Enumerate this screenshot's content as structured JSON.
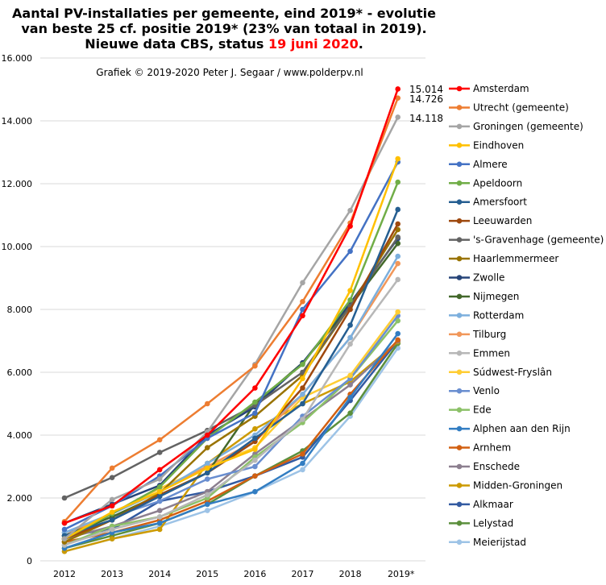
{
  "chart_data": {
    "type": "line",
    "title_lines": [
      "Aantal PV-installaties  per gemeente, eind 2019* - evolutie",
      "van beste 25 cf. positie 2019* (23% van totaal in 2019)."
    ],
    "title_line3_prefix": "Nieuwe data CBS, status ",
    "title_line3_highlight": "19 juni 2020",
    "title_line3_suffix": ".",
    "highlight_color": "#ff0000",
    "subtitle": "Grafiek  © 2019-2020 Peter J. Segaar / www.polderpv.nl",
    "categories": [
      "2012",
      "2013",
      "2014",
      "2015",
      "2016",
      "2017",
      "2018",
      "2019*"
    ],
    "ylim": [
      0,
      16000
    ],
    "y_ticks": [
      "0",
      "2.000",
      "4.000",
      "6.000",
      "8.000",
      "10.000",
      "12.000",
      "14.000",
      "16.000"
    ],
    "grid": true,
    "legend_position": "right",
    "end_labels": [
      "15.014",
      "14.726",
      "14.118"
    ],
    "series": [
      {
        "name": "Amsterdam",
        "color": "#ff0000",
        "values": [
          1200,
          1750,
          2900,
          4000,
          5500,
          7800,
          10650,
          15014
        ]
      },
      {
        "name": "Utrecht (gemeente)",
        "color": "#ed7d31",
        "values": [
          1250,
          2950,
          3850,
          5000,
          6200,
          8250,
          10750,
          14726
        ]
      },
      {
        "name": "Groningen (gemeente)",
        "color": "#a5a5a5",
        "values": [
          700,
          1950,
          2600,
          4100,
          6250,
          8850,
          11150,
          14118
        ]
      },
      {
        "name": "Eindhoven",
        "color": "#ffc000",
        "values": [
          700,
          1550,
          2200,
          2950,
          3550,
          5800,
          8600,
          12795
        ]
      },
      {
        "name": "Almere",
        "color": "#4472c4",
        "values": [
          1000,
          1750,
          2700,
          3900,
          4700,
          8000,
          9850,
          12690
        ]
      },
      {
        "name": "Apeldoorn",
        "color": "#70ad47",
        "values": [
          700,
          1500,
          2350,
          3900,
          5050,
          6250,
          8300,
          12050
        ]
      },
      {
        "name": "Amersfoort",
        "color": "#255e91",
        "values": [
          800,
          1300,
          2050,
          2800,
          3900,
          5000,
          7500,
          11180
        ]
      },
      {
        "name": "Leeuwarden",
        "color": "#9e480e",
        "values": [
          700,
          1300,
          2100,
          2800,
          3800,
          5500,
          8000,
          10720
        ]
      },
      {
        "name": "'s-Gravenhage (gemeente)",
        "color": "#636363",
        "values": [
          2000,
          2650,
          3450,
          4150,
          4950,
          6000,
          8100,
          10300
        ]
      },
      {
        "name": "Haarlemmermeer",
        "color": "#997300",
        "values": [
          600,
          1300,
          2150,
          3600,
          4600,
          5900,
          8100,
          10540
        ]
      },
      {
        "name": "Zwolle",
        "color": "#264478",
        "values": [
          1200,
          1800,
          2400,
          4000,
          4900,
          6300,
          8200,
          10260
        ]
      },
      {
        "name": "Nijmegen",
        "color": "#43682b",
        "values": [
          800,
          1400,
          2100,
          2800,
          5000,
          6300,
          8100,
          10100
        ]
      },
      {
        "name": "Rotterdam",
        "color": "#7cafdd",
        "values": [
          900,
          1500,
          2200,
          3100,
          4000,
          5300,
          7100,
          9690
        ]
      },
      {
        "name": "Tilburg",
        "color": "#f1975a",
        "values": [
          800,
          1500,
          2200,
          3000,
          3800,
          5300,
          7100,
          9460
        ]
      },
      {
        "name": "Emmen",
        "color": "#b7b7b7",
        "values": [
          500,
          1000,
          1400,
          2100,
          3200,
          4500,
          6900,
          8950
        ]
      },
      {
        "name": "Súdwest-Fryslân",
        "color": "#ffcd33",
        "values": [
          700,
          1500,
          2300,
          3000,
          3600,
          5200,
          5900,
          7920
        ]
      },
      {
        "name": "Venlo",
        "color": "#698ed0",
        "values": [
          900,
          1400,
          1900,
          2600,
          3000,
          4600,
          5800,
          7800
        ]
      },
      {
        "name": "Ede",
        "color": "#8cc168",
        "values": [
          500,
          1100,
          1400,
          2000,
          3300,
          4400,
          5800,
          7640
        ]
      },
      {
        "name": "Alphen aan den Rijn",
        "color": "#327dc2",
        "values": [
          400,
          900,
          1200,
          1800,
          2200,
          3100,
          5200,
          7230
        ]
      },
      {
        "name": "Arnhem",
        "color": "#d26012",
        "values": [
          600,
          900,
          1300,
          1900,
          2700,
          3400,
          5300,
          7030
        ]
      },
      {
        "name": "Enschede",
        "color": "#8c7f8f",
        "values": [
          700,
          1100,
          1600,
          2200,
          3400,
          4500,
          5600,
          7000
        ]
      },
      {
        "name": "Midden-Groningen",
        "color": "#cc9a00",
        "values": [
          300,
          700,
          1000,
          3100,
          4200,
          5000,
          5700,
          6970
        ]
      },
      {
        "name": "Alkmaar",
        "color": "#335aa1",
        "values": [
          800,
          1000,
          1900,
          2200,
          2700,
          3300,
          5100,
          7000
        ]
      },
      {
        "name": "Lelystad",
        "color": "#5b8f3c",
        "values": [
          400,
          800,
          1200,
          1800,
          2700,
          3500,
          4700,
          6920
        ]
      },
      {
        "name": "Meierijstad",
        "color": "#9dc3e6",
        "values": [
          300,
          700,
          1100,
          1600,
          2200,
          2900,
          4600,
          6770
        ]
      }
    ]
  }
}
